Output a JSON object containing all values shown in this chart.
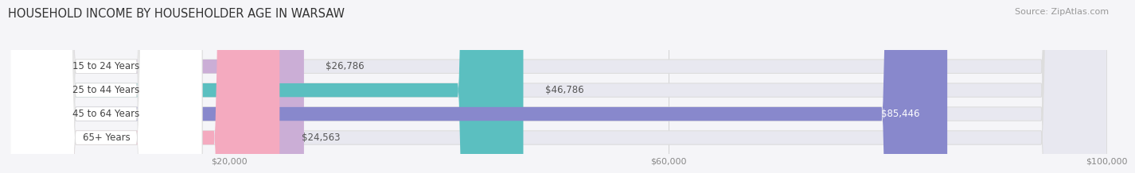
{
  "title": "HOUSEHOLD INCOME BY HOUSEHOLDER AGE IN WARSAW",
  "source": "Source: ZipAtlas.com",
  "categories": [
    "15 to 24 Years",
    "25 to 44 Years",
    "45 to 64 Years",
    "65+ Years"
  ],
  "values": [
    26786,
    46786,
    85446,
    24563
  ],
  "bar_colors": [
    "#cbaed6",
    "#5bbfc0",
    "#8888cc",
    "#f4aabf"
  ],
  "bar_track_color": "#e8e8f0",
  "value_labels": [
    "$26,786",
    "$46,786",
    "$85,446",
    "$24,563"
  ],
  "label_color_inside": "#ffffff",
  "label_color_outside": "#555555",
  "xmax": 100000,
  "xticks": [
    20000,
    60000,
    100000
  ],
  "xtick_labels": [
    "$20,000",
    "$60,000",
    "$100,000"
  ],
  "title_fontsize": 10.5,
  "source_fontsize": 8,
  "bar_label_fontsize": 8.5,
  "category_fontsize": 8.5,
  "background_color": "#f5f5f8",
  "bar_height": 0.58,
  "white_label_bg": "#ffffff"
}
